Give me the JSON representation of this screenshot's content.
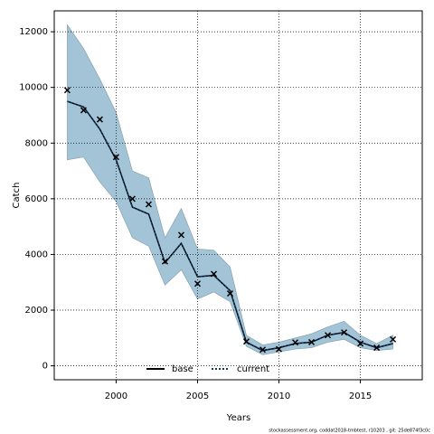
{
  "chart_data": {
    "type": "line",
    "x_label": "Years",
    "y_label": "Catch",
    "footer": "stockassessment.org, coddat2018-tmbtest, r10203 , git: 25de874f3c0c",
    "x": [
      1997,
      1998,
      1999,
      2000,
      2001,
      2002,
      2003,
      2004,
      2005,
      2006,
      2007,
      2008,
      2009,
      2010,
      2011,
      2012,
      2013,
      2014,
      2015,
      2016,
      2017
    ],
    "series": [
      {
        "name": "base",
        "color": "#000000",
        "style": "solid",
        "values": [
          9500,
          9300,
          8500,
          7400,
          5700,
          5450,
          3700,
          4400,
          3200,
          3250,
          2700,
          850,
          550,
          650,
          800,
          850,
          1100,
          1200,
          850,
          650,
          800
        ]
      },
      {
        "name": "current",
        "color": "#0d3a66",
        "style": "dotted",
        "values": [
          9500,
          9300,
          8500,
          7400,
          5700,
          5450,
          3700,
          4400,
          3200,
          3250,
          2700,
          850,
          550,
          650,
          800,
          850,
          1100,
          1200,
          850,
          650,
          800
        ]
      }
    ],
    "band": {
      "color": "#a3c4d6",
      "upper": [
        12250,
        11400,
        10300,
        9100,
        7000,
        6750,
        4600,
        5650,
        4200,
        4150,
        3550,
        1100,
        750,
        850,
        1000,
        1150,
        1400,
        1600,
        1100,
        800,
        1100
      ],
      "lower": [
        7400,
        7500,
        6600,
        5900,
        4600,
        4300,
        2900,
        3450,
        2400,
        2650,
        2300,
        700,
        400,
        500,
        600,
        650,
        850,
        950,
        650,
        550,
        600
      ]
    },
    "observed": {
      "color": "#000000",
      "values": [
        9900,
        9180,
        8850,
        7500,
        6000,
        5800,
        3750,
        4700,
        2950,
        3300,
        2600,
        875,
        580,
        600,
        840,
        850,
        1100,
        1200,
        800,
        650,
        950
      ]
    },
    "xlim": [
      1996.2,
      2018.8
    ],
    "ylim": [
      -500,
      12750
    ],
    "xticks": [
      2000,
      2005,
      2010,
      2015
    ],
    "yticks": [
      0,
      2000,
      4000,
      6000,
      8000,
      10000,
      12000
    ],
    "grid": true,
    "legend": "bottom"
  }
}
